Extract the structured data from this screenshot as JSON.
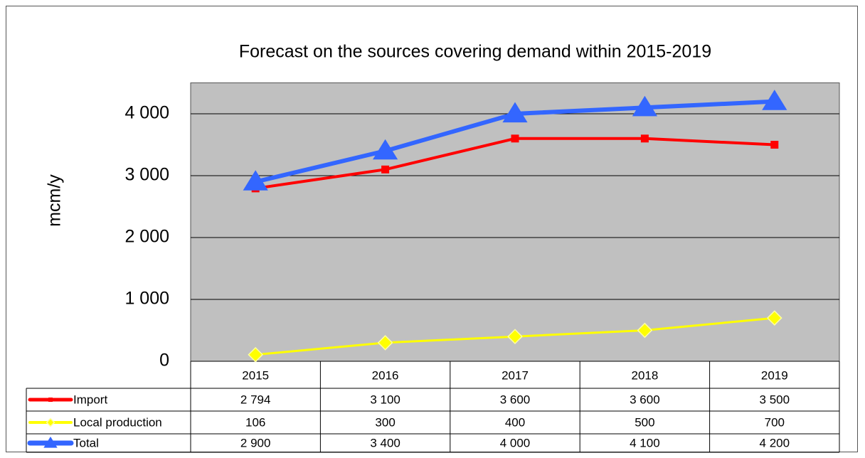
{
  "chart_data": {
    "type": "line",
    "title": "Forecast on the sources covering demand within 2015-2019",
    "y_label": "mcm/y",
    "categories": [
      "2015",
      "2016",
      "2017",
      "2018",
      "2019"
    ],
    "series": [
      {
        "name": "Import",
        "color": "#ff0000",
        "marker": "square",
        "values": [
          2794,
          3100,
          3600,
          3600,
          3500
        ],
        "value_labels": [
          "2 794",
          "3 100",
          "3 600",
          "3 600",
          "3 500"
        ]
      },
      {
        "name": "Local production",
        "color": "#ffff00",
        "marker": "diamond",
        "values": [
          106,
          300,
          400,
          500,
          700
        ]
      },
      {
        "name": "Total",
        "color": "#3366ff",
        "marker": "triangle",
        "values": [
          2900,
          3400,
          4000,
          4100,
          4200
        ],
        "value_labels": [
          "2 900",
          "3 400",
          "4 000",
          "4 100",
          "4 200"
        ]
      }
    ],
    "ylim": [
      0,
      4500
    ],
    "yticks": [
      0,
      {
        "value": 1000,
        "label": "1 000"
      },
      {
        "value": 2000,
        "label": "2 000"
      },
      {
        "value": 3000,
        "label": "3 000"
      },
      {
        "value": 4000,
        "label": "4 000"
      }
    ],
    "grid": true,
    "plot_background": "#c0c0c0"
  }
}
